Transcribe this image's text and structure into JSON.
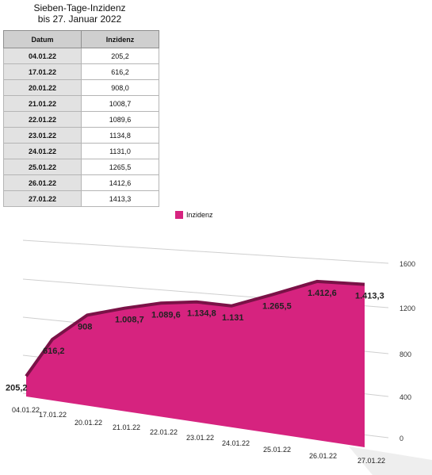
{
  "chart_data": {
    "type": "area",
    "title": "Sieben-Tage-Inzidenz",
    "subtitle": "bis 27. Januar 2022",
    "table_headers": [
      "Datum",
      "Inzidenz"
    ],
    "categories": [
      "04.01.22",
      "17.01.22",
      "20.01.22",
      "21.01.22",
      "22.01.22",
      "23.01.22",
      "24.01.22",
      "25.01.22",
      "26.01.22",
      "27.01.22"
    ],
    "table_values": [
      "205,2",
      "616,2",
      "908,0",
      "1008,7",
      "1089,6",
      "1134,8",
      "1131,0",
      "1265,5",
      "1412,6",
      "1413,3"
    ],
    "series": [
      {
        "name": "Inzidenz",
        "values": [
          205.2,
          616.2,
          908.0,
          1008.7,
          1089.6,
          1134.8,
          1131.0,
          1265.5,
          1412.6,
          1413.3
        ],
        "color": "#d6237f"
      }
    ],
    "data_labels": [
      "205,2",
      "616,2",
      "908",
      "1.008,7",
      "1.089,6",
      "1.134,8",
      "1.131",
      "1.265,5",
      "1.412,6",
      "1.413,3"
    ],
    "yticks": [
      0,
      400,
      800,
      1200,
      1600
    ],
    "ylim": [
      0,
      1600
    ],
    "legend": "top",
    "grid": true
  }
}
